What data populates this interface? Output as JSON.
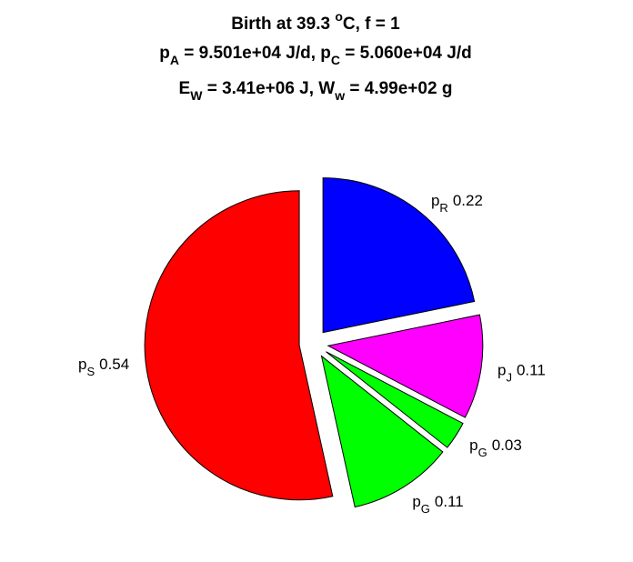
{
  "chart_data": {
    "type": "pie",
    "title": [
      [
        "Birth at 39.3 ",
        "o",
        "C, f = 1"
      ],
      [
        "p",
        "A",
        " = 9.501e+04 J/d, p",
        "C",
        " = 5.060e+04 J/d"
      ],
      [
        "E",
        "W",
        " = 3.41e+06 J, W",
        "w",
        " = 4.99e+02 g"
      ]
    ],
    "categories": [
      [
        "p",
        "R"
      ],
      [
        "p",
        "J"
      ],
      [
        "p",
        "G"
      ],
      [
        "p",
        "G"
      ],
      [
        "p",
        "S"
      ]
    ],
    "values": [
      0.22,
      0.11,
      0.03,
      0.11,
      0.54
    ],
    "colors": [
      "#0000ff",
      "#ff00ff",
      "#00ff00",
      "#00ff00",
      "#ff0000"
    ]
  }
}
